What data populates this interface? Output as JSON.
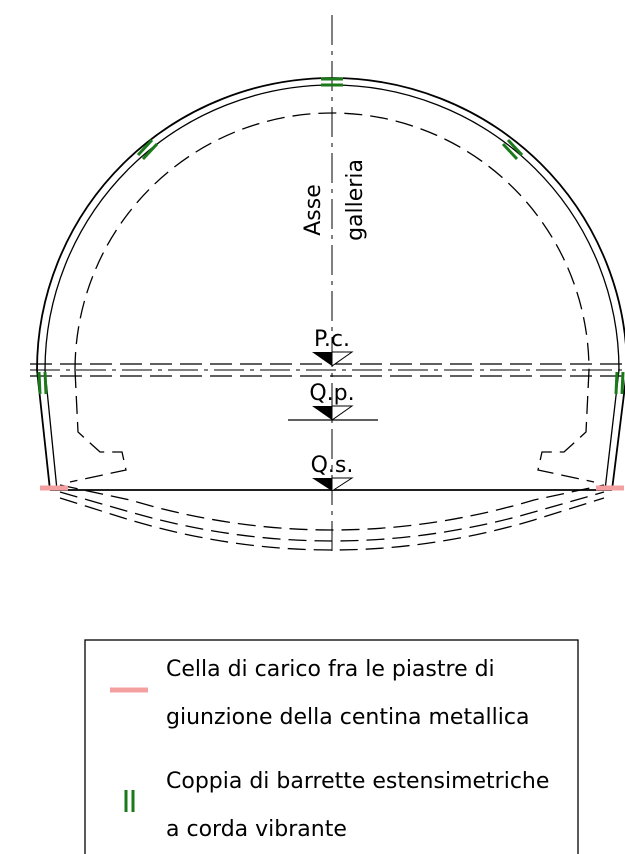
{
  "axis_label": [
    "Asse",
    "galleria"
  ],
  "levels": [
    "P.c.",
    "Q.p.",
    "Q.s."
  ],
  "legend": [
    {
      "lines": [
        "Cella di carico fra le piastre di",
        "giunzione della centina metallica"
      ]
    },
    {
      "lines": [
        "Coppia di barrette estensimetriche",
        "a corda vibrante"
      ]
    }
  ]
}
